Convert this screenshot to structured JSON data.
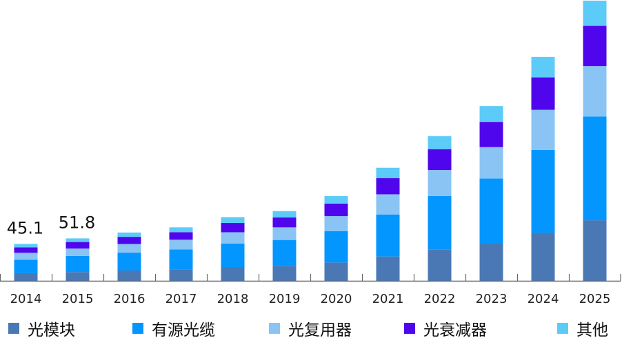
{
  "chart_data": {
    "type": "bar",
    "stacked": true,
    "categories": [
      "2014",
      "2015",
      "2016",
      "2017",
      "2018",
      "2019",
      "2020",
      "2021",
      "2022",
      "2023",
      "2024",
      "2025"
    ],
    "series": [
      {
        "name": "光模块",
        "color": "#4a78b5",
        "values": [
          9.3,
          10.7,
          12.6,
          14.0,
          16.8,
          18.2,
          22.4,
          29.7,
          38.1,
          46.2,
          58.8,
          73.9
        ]
      },
      {
        "name": "有源光缆",
        "color": "#0496ff",
        "values": [
          16.5,
          19.6,
          21.8,
          24.4,
          28.6,
          31.7,
          38.4,
          51.3,
          65.5,
          78.7,
          101.1,
          126.6
        ]
      },
      {
        "name": "光复用器",
        "color": "#89c4f5",
        "values": [
          8.4,
          9.1,
          10.6,
          11.8,
          13.9,
          15.4,
          18.2,
          24.6,
          31.7,
          38.4,
          49.0,
          61.7
        ]
      },
      {
        "name": "光衰减器",
        "color": "#5006ec",
        "values": [
          6.7,
          8.0,
          8.7,
          9.2,
          11.3,
          12.1,
          15.4,
          19.9,
          25.5,
          30.8,
          39.5,
          49.2
        ]
      },
      {
        "name": "其他",
        "color": "#5ccbf8",
        "values": [
          4.2,
          4.4,
          5.3,
          5.9,
          7.2,
          7.8,
          9.2,
          12.6,
          16.0,
          19.3,
          25.0,
          30.8
        ]
      }
    ],
    "data_labels": [
      {
        "category": "2014",
        "text": "45.1"
      },
      {
        "category": "2015",
        "text": "51.8"
      }
    ],
    "ylim": [
      0,
      343
    ],
    "grid": false,
    "legend_position": "bottom"
  }
}
